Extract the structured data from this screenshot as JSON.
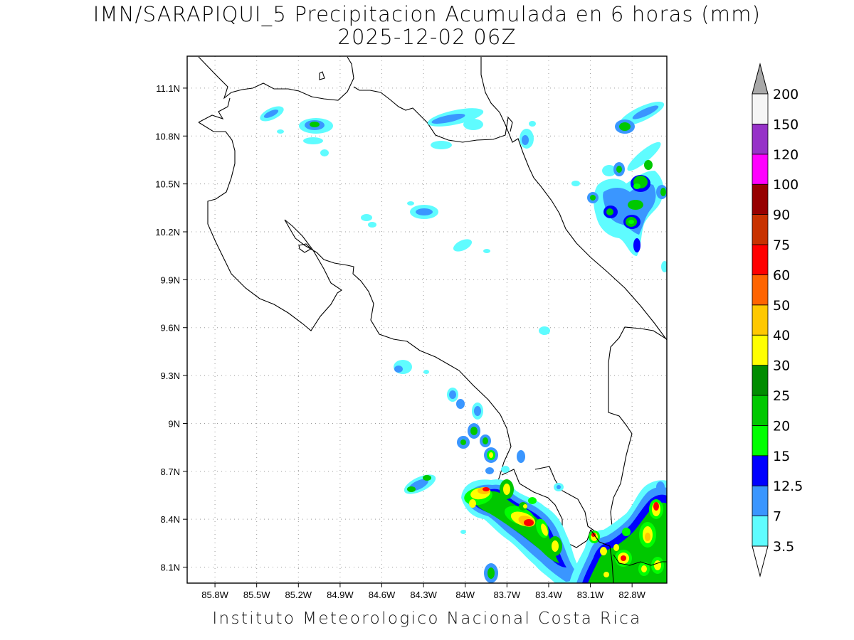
{
  "title": "IMN/SARAPIQUI_5 Precipitacion Acumulada en 6 horas (mm)",
  "subtitle": "2025-12-02 06Z",
  "footer": "Instituto Meteorologico Nacional Costa Rica",
  "map": {
    "lon_range": [
      -86.0,
      -82.55
    ],
    "lat_range": [
      8.0,
      11.3
    ],
    "x_ticks": [
      "85.8W",
      "85.5W",
      "85.2W",
      "84.9W",
      "84.6W",
      "84.3W",
      "84W",
      "83.7W",
      "83.4W",
      "83.1W",
      "82.8W"
    ],
    "x_tick_values": [
      -85.8,
      -85.5,
      -85.2,
      -84.9,
      -84.6,
      -84.3,
      -84.0,
      -83.7,
      -83.4,
      -83.1,
      -82.8
    ],
    "y_ticks": [
      "8.1N",
      "8.4N",
      "8.7N",
      "9N",
      "9.3N",
      "9.6N",
      "9.9N",
      "10.2N",
      "10.5N",
      "10.8N",
      "11.1N"
    ],
    "y_tick_values": [
      8.1,
      8.4,
      8.7,
      9.0,
      9.3,
      9.6,
      9.9,
      10.2,
      10.5,
      10.8,
      11.1
    ],
    "grid": true
  },
  "colorbar": {
    "levels": [
      "3.5",
      "7",
      "12.5",
      "15",
      "20",
      "25",
      "30",
      "40",
      "50",
      "60",
      "75",
      "90",
      "100",
      "120",
      "150",
      "200"
    ],
    "colors": [
      "#5ffcff",
      "#3a96ff",
      "#0000ff",
      "#00ff00",
      "#00c800",
      "#008c00",
      "#ffff00",
      "#ffc800",
      "#ff6400",
      "#ff0000",
      "#c83200",
      "#960000",
      "#ff00ff",
      "#9632c8",
      "#f5f5f5"
    ],
    "over_color": "#a8a8a8"
  }
}
